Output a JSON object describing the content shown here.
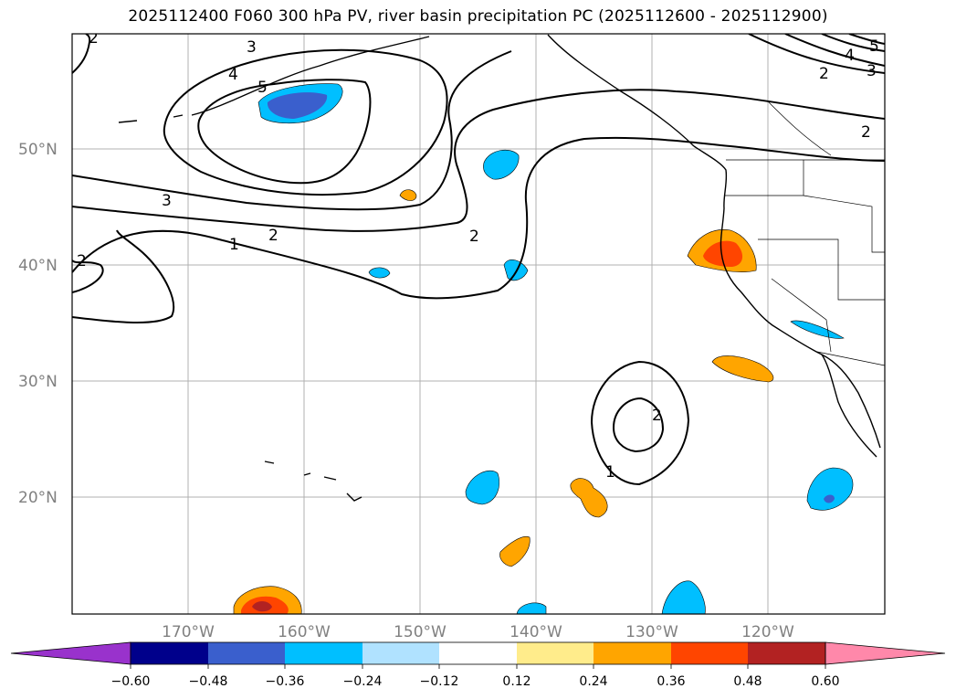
{
  "title": "2025112400 F060 300 hPa PV, river basin precipitation PC (2025112600 - 2025112900)",
  "map": {
    "lat_labels": [
      "50°N",
      "40°N",
      "30°N",
      "20°N"
    ],
    "lon_labels": [
      "170°W",
      "160°W",
      "150°W",
      "140°W",
      "130°W",
      "120°W"
    ],
    "contour_labels": [
      "2",
      "3",
      "4",
      "5",
      "1",
      "2",
      "3",
      "2",
      "2",
      "2",
      "4",
      "3",
      "5",
      "2",
      "2",
      "1"
    ]
  },
  "colorbar": {
    "ticks": [
      "−0.60",
      "−0.48",
      "−0.36",
      "−0.24",
      "−0.12",
      "0.12",
      "0.24",
      "0.36",
      "0.48",
      "0.60"
    ],
    "colors": [
      "#9932cc",
      "#00008b",
      "#3a5fcd",
      "#00bfff",
      "#b0e2ff",
      "#ffffff",
      "#ffec8b",
      "#ffa500",
      "#ff4500",
      "#b22222",
      "#ff88aa"
    ]
  },
  "chart_data": {
    "type": "map",
    "title": "2025112400 F060 300 hPa PV, river basin precipitation PC (2025112600 - 2025112900)",
    "variable_contours": "300 hPa PV (PVU)",
    "variable_fill": "river basin precipitation PC",
    "lat_range": [
      10,
      60
    ],
    "lon_range": [
      -180,
      -110
    ],
    "lat_ticks": [
      20,
      30,
      40,
      50
    ],
    "lon_ticks": [
      -170,
      -160,
      -150,
      -140,
      -130,
      -120
    ],
    "contour_levels": [
      1,
      2,
      3,
      4,
      5
    ],
    "colorbar_levels": [
      -0.6,
      -0.48,
      -0.36,
      -0.24,
      -0.12,
      0.12,
      0.24,
      0.36,
      0.48,
      0.6
    ],
    "colorbar_extend": "both"
  }
}
